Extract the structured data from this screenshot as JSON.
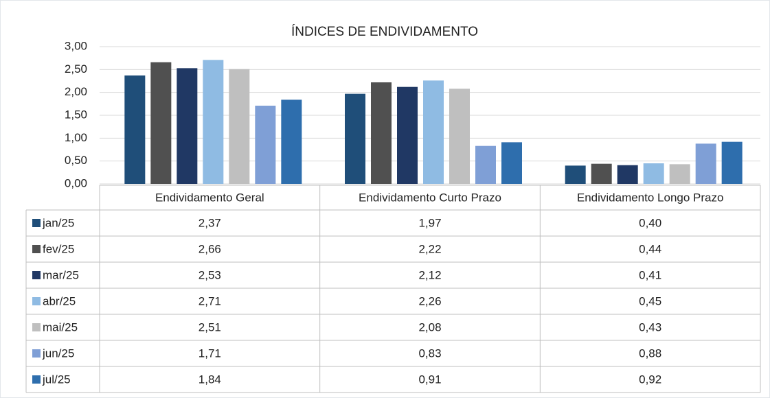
{
  "chart_data": {
    "type": "bar",
    "title": "ÍNDICES DE ENDIVIDAMENTO",
    "categories": [
      "Endividamento Geral",
      "Endividamento Curto Prazo",
      "Endividamento Longo Prazo"
    ],
    "series": [
      {
        "name": "jan/25",
        "color": "#1f4e79",
        "values": [
          2.37,
          1.97,
          0.4
        ],
        "value_labels": [
          "2,37",
          "1,97",
          "0,40"
        ]
      },
      {
        "name": "fev/25",
        "color": "#505050",
        "values": [
          2.66,
          2.22,
          0.44
        ],
        "value_labels": [
          "2,66",
          "2,22",
          "0,44"
        ]
      },
      {
        "name": "mar/25",
        "color": "#203864",
        "values": [
          2.53,
          2.12,
          0.41
        ],
        "value_labels": [
          "2,53",
          "2,12",
          "0,41"
        ]
      },
      {
        "name": "abr/25",
        "color": "#8fbbe3",
        "values": [
          2.71,
          2.26,
          0.45
        ],
        "value_labels": [
          "2,71",
          "2,26",
          "0,45"
        ]
      },
      {
        "name": "mai/25",
        "color": "#bfbfbf",
        "values": [
          2.51,
          2.08,
          0.43
        ],
        "value_labels": [
          "2,51",
          "2,08",
          "0,43"
        ]
      },
      {
        "name": "jun/25",
        "color": "#7f9fd6",
        "values": [
          1.71,
          0.83,
          0.88
        ],
        "value_labels": [
          "1,71",
          "0,83",
          "0,88"
        ]
      },
      {
        "name": "jul/25",
        "color": "#2e6ead",
        "values": [
          1.84,
          0.91,
          0.92
        ],
        "value_labels": [
          "1,84",
          "0,91",
          "0,92"
        ]
      }
    ],
    "ylim": [
      0,
      3
    ],
    "yticks": [
      {
        "value": 0,
        "label": "0,00"
      },
      {
        "value": 0.5,
        "label": "0,50"
      },
      {
        "value": 1,
        "label": "1,00"
      },
      {
        "value": 1.5,
        "label": "1,50"
      },
      {
        "value": 2,
        "label": "2,00"
      },
      {
        "value": 2.5,
        "label": "2,50"
      },
      {
        "value": 3,
        "label": "3,00"
      }
    ],
    "grid": true
  }
}
